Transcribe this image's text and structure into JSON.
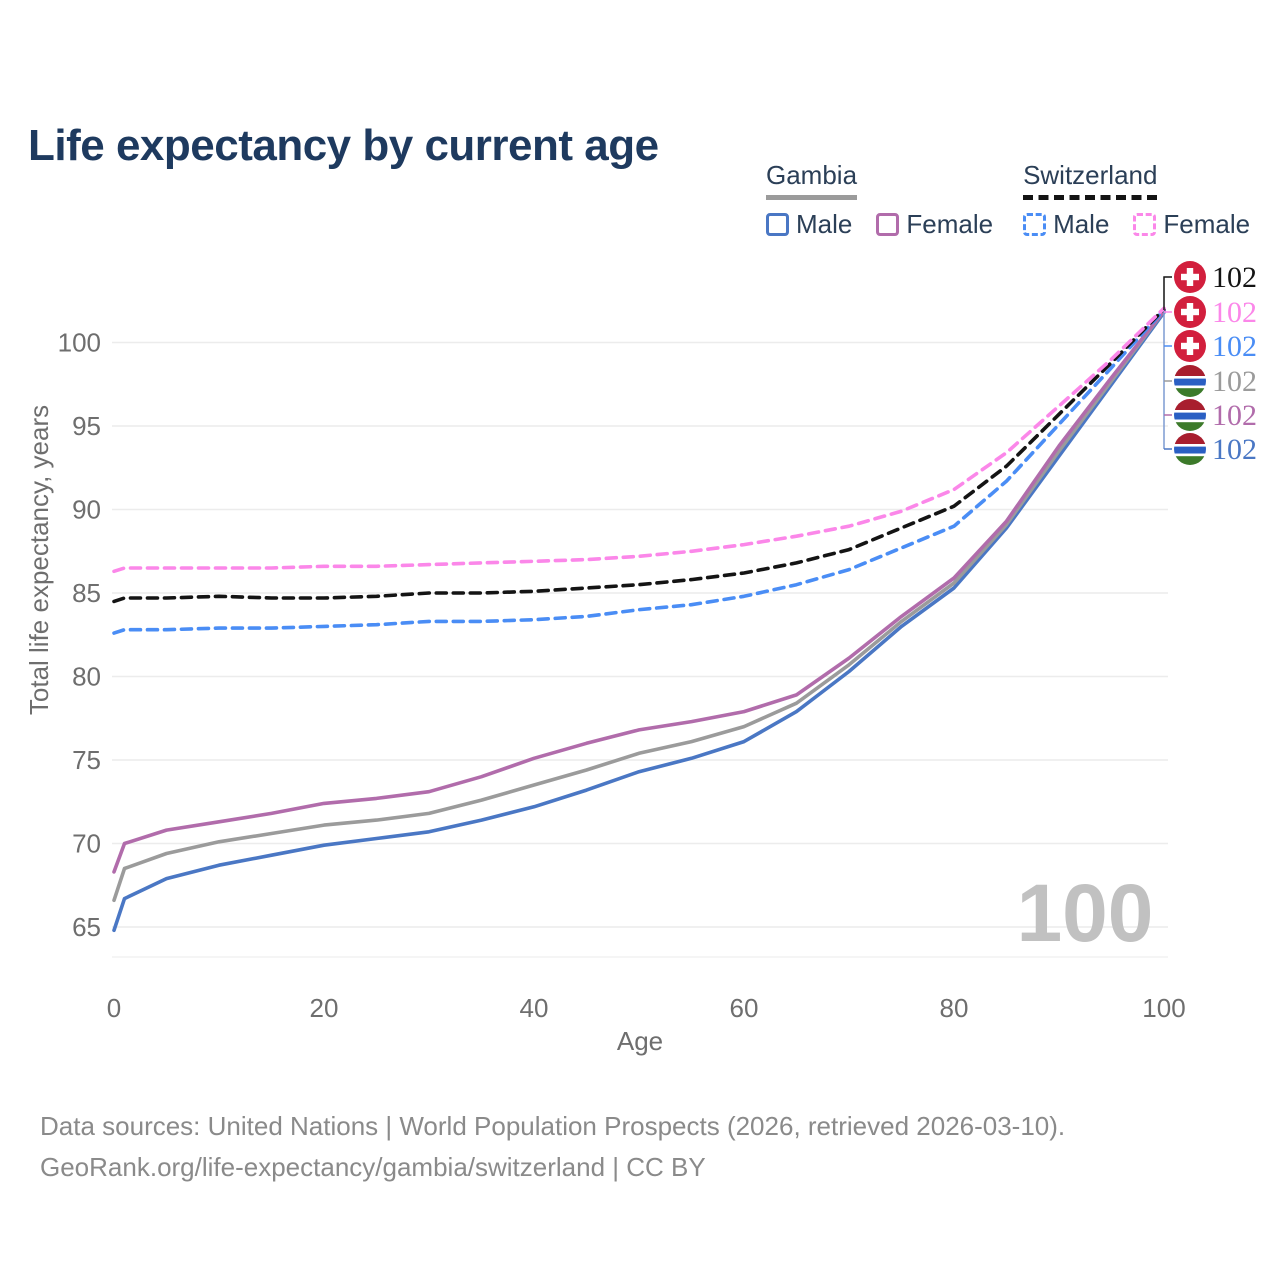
{
  "header": {
    "title": "Life expectancy by current age"
  },
  "legend": {
    "groups": [
      {
        "name": "Gambia",
        "line_style": "solid",
        "line_color": "#9b9b9b",
        "items": [
          {
            "label": "Male",
            "color": "#4a77c4",
            "style": "solid"
          },
          {
            "label": "Female",
            "color": "#b16cab",
            "style": "solid"
          }
        ]
      },
      {
        "name": "Switzerland",
        "line_style": "dashed",
        "line_color": "#141414",
        "items": [
          {
            "label": "Male",
            "color": "#4a8df5",
            "style": "dashed"
          },
          {
            "label": "Female",
            "color": "#fb87e9",
            "style": "dashed"
          }
        ]
      }
    ]
  },
  "chart_data": {
    "type": "line",
    "title": "Life expectancy by current age",
    "xlabel": "Age",
    "ylabel": "Total life expectancy, years",
    "xlim": [
      0,
      100
    ],
    "ylim": [
      63.5,
      103
    ],
    "xticks": [
      0,
      20,
      40,
      60,
      80,
      100
    ],
    "yticks": [
      65,
      70,
      75,
      80,
      85,
      90,
      95,
      100
    ],
    "grid": "horizontal",
    "legend_position": "top-right",
    "watermark_age": "100",
    "x": [
      0,
      1,
      5,
      10,
      15,
      20,
      25,
      30,
      35,
      40,
      45,
      50,
      55,
      60,
      65,
      70,
      75,
      80,
      85,
      90,
      95,
      100
    ],
    "series": [
      {
        "name": "Gambia Male",
        "country": "gambia",
        "color": "#4a77c4",
        "dash": false,
        "values": [
          64.8,
          66.7,
          67.9,
          68.7,
          69.3,
          69.9,
          70.3,
          70.7,
          71.4,
          72.2,
          73.2,
          74.3,
          75.1,
          76.1,
          77.9,
          80.3,
          83.0,
          85.3,
          88.9,
          93.2,
          97.5,
          101.8
        ]
      },
      {
        "name": "Gambia Total",
        "country": "gambia",
        "color": "#9b9b9b",
        "dash": false,
        "values": [
          66.6,
          68.5,
          69.4,
          70.1,
          70.6,
          71.1,
          71.4,
          71.8,
          72.6,
          73.5,
          74.4,
          75.4,
          76.1,
          77.0,
          78.4,
          80.7,
          83.3,
          85.6,
          89.1,
          93.5,
          97.7,
          101.9
        ]
      },
      {
        "name": "Gambia Female",
        "country": "gambia",
        "color": "#b16cab",
        "dash": false,
        "values": [
          68.3,
          70.0,
          70.8,
          71.3,
          71.8,
          72.4,
          72.7,
          73.1,
          74.0,
          75.1,
          76.0,
          76.8,
          77.3,
          77.9,
          78.9,
          81.1,
          83.6,
          85.9,
          89.3,
          93.8,
          97.9,
          101.9
        ]
      },
      {
        "name": "Switzerland Male",
        "country": "switzerland",
        "color": "#4a8df5",
        "dash": true,
        "values": [
          82.6,
          82.8,
          82.8,
          82.9,
          82.9,
          83.0,
          83.1,
          83.3,
          83.3,
          83.4,
          83.6,
          84.0,
          84.3,
          84.8,
          85.5,
          86.4,
          87.7,
          89.0,
          91.7,
          95.1,
          98.5,
          101.95
        ]
      },
      {
        "name": "Switzerland Total",
        "country": "switzerland",
        "color": "#141414",
        "dash": true,
        "values": [
          84.5,
          84.7,
          84.7,
          84.8,
          84.7,
          84.7,
          84.8,
          85.0,
          85.0,
          85.1,
          85.3,
          85.5,
          85.8,
          86.2,
          86.8,
          87.6,
          88.9,
          90.2,
          92.6,
          95.7,
          98.8,
          102.0
        ]
      },
      {
        "name": "Switzerland Female",
        "country": "switzerland",
        "color": "#fb87e9",
        "dash": true,
        "values": [
          86.3,
          86.5,
          86.5,
          86.5,
          86.5,
          86.6,
          86.6,
          86.7,
          86.8,
          86.9,
          87.0,
          87.2,
          87.5,
          87.9,
          88.4,
          89.0,
          89.9,
          91.2,
          93.4,
          96.2,
          99.0,
          102.05
        ]
      }
    ],
    "end_labels": [
      {
        "flag": "switzerland",
        "value": "102",
        "color": "#141414"
      },
      {
        "flag": "switzerland",
        "value": "102",
        "color": "#fb87e9"
      },
      {
        "flag": "switzerland",
        "value": "102",
        "color": "#4a8df5"
      },
      {
        "flag": "gambia",
        "value": "102",
        "color": "#9b9b9b"
      },
      {
        "flag": "gambia",
        "value": "102",
        "color": "#b16cab"
      },
      {
        "flag": "gambia",
        "value": "102",
        "color": "#4a77c4"
      }
    ],
    "colors": {
      "title": "#1e3a5f",
      "axis_text": "#6e6e6e",
      "gridline": "#ececec",
      "watermark": "#c1c1c1",
      "swiss_flag_red": "#d21f3d",
      "gambia_flag_red": "#a81e2e",
      "gambia_flag_blue": "#2a5fc3",
      "gambia_flag_green": "#3c7a2a"
    }
  },
  "footer": {
    "line1": "Data sources: United Nations | World Population Prospects (2026, retrieved 2026-03-10).",
    "line2": "GeoRank.org/life-expectancy/gambia/switzerland | CC BY"
  }
}
